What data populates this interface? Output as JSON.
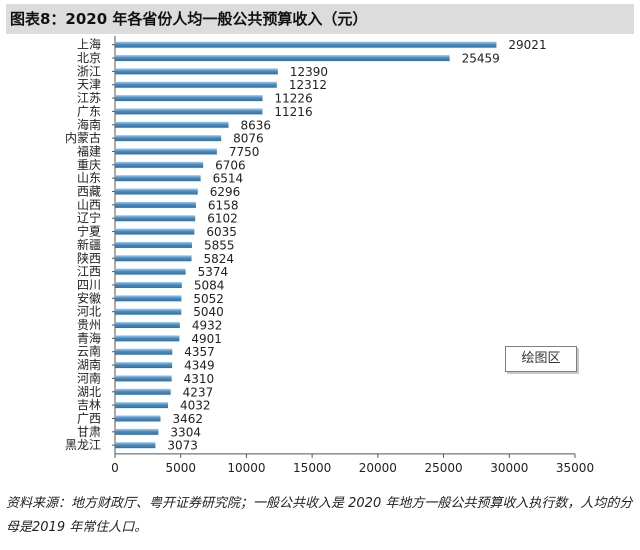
{
  "title": "图表8：2020 年各省份人均一般公共预算收入（元）",
  "watermark": "绘图区",
  "source": "资料来源：地方财政厅、粤开证券研究院；一般公共收入是 2020 年地方一般公共预算收入执行数，人均的分母是2019 年常住人口。",
  "colors": {
    "bar_dark": "#2f6fa6",
    "bar_light": "#a9cde6",
    "axis": "#555555"
  },
  "chart_data": {
    "type": "bar",
    "orientation": "horizontal",
    "categories": [
      "上海",
      "北京",
      "浙江",
      "天津",
      "江苏",
      "广东",
      "海南",
      "内蒙古",
      "福建",
      "重庆",
      "山东",
      "西藏",
      "山西",
      "辽宁",
      "宁夏",
      "新疆",
      "陕西",
      "江西",
      "四川",
      "安徽",
      "河北",
      "贵州",
      "青海",
      "云南",
      "湖南",
      "河南",
      "湖北",
      "吉林",
      "广西",
      "甘肃",
      "黑龙江"
    ],
    "values": [
      29021,
      25459,
      12390,
      12312,
      11226,
      11216,
      8636,
      8076,
      7750,
      6706,
      6514,
      6296,
      6158,
      6102,
      6035,
      5855,
      5824,
      5374,
      5084,
      5052,
      5040,
      4932,
      4901,
      4357,
      4349,
      4310,
      4237,
      4032,
      3462,
      3304,
      3073
    ],
    "value_labels": [
      "29021",
      "25459",
      "12390",
      "12312",
      "11226",
      "11216",
      "8636",
      "8076",
      "7750",
      "6706",
      "6514",
      "6296",
      "6158",
      "6102",
      "6035",
      "5855",
      "5824",
      "5374",
      "5084",
      "5052",
      "5040",
      "4932",
      "4901",
      "4357",
      "4349",
      "4310",
      "4237",
      "4032",
      "3462",
      "3304",
      "3073"
    ],
    "xticks": [
      "0",
      "5000",
      "10000",
      "15000",
      "20000",
      "25000",
      "30000",
      "35000"
    ],
    "xlim": [
      0,
      35000
    ],
    "xlabel": "",
    "ylabel": "",
    "grid": false,
    "legend": "none"
  }
}
